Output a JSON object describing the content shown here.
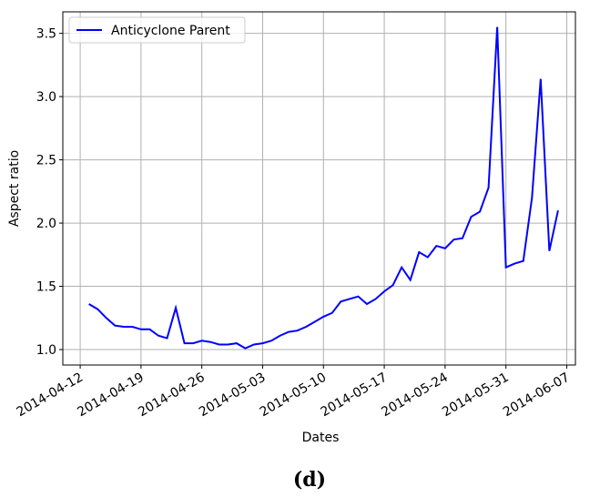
{
  "chart_data": {
    "type": "line",
    "xlabel": "Dates",
    "ylabel": "Aspect ratio",
    "x": [
      "2014-04-13",
      "2014-04-14",
      "2014-04-15",
      "2014-04-16",
      "2014-04-17",
      "2014-04-18",
      "2014-04-19",
      "2014-04-20",
      "2014-04-21",
      "2014-04-22",
      "2014-04-23",
      "2014-04-24",
      "2014-04-25",
      "2014-04-26",
      "2014-04-27",
      "2014-04-28",
      "2014-04-29",
      "2014-04-30",
      "2014-05-01",
      "2014-05-02",
      "2014-05-03",
      "2014-05-04",
      "2014-05-05",
      "2014-05-06",
      "2014-05-07",
      "2014-05-08",
      "2014-05-09",
      "2014-05-10",
      "2014-05-11",
      "2014-05-12",
      "2014-05-13",
      "2014-05-14",
      "2014-05-15",
      "2014-05-16",
      "2014-05-17",
      "2014-05-18",
      "2014-05-19",
      "2014-05-20",
      "2014-05-21",
      "2014-05-22",
      "2014-05-23",
      "2014-05-24",
      "2014-05-25",
      "2014-05-26",
      "2014-05-27",
      "2014-05-28",
      "2014-05-29",
      "2014-05-30",
      "2014-05-31",
      "2014-06-01",
      "2014-06-02",
      "2014-06-03",
      "2014-06-04",
      "2014-06-05",
      "2014-06-06"
    ],
    "series": [
      {
        "name": "Anticyclone Parent",
        "color": "#0000ff",
        "values": [
          1.36,
          1.32,
          1.25,
          1.19,
          1.18,
          1.18,
          1.16,
          1.16,
          1.11,
          1.09,
          1.33,
          1.05,
          1.05,
          1.07,
          1.06,
          1.04,
          1.04,
          1.05,
          1.01,
          1.04,
          1.05,
          1.07,
          1.11,
          1.14,
          1.15,
          1.18,
          1.22,
          1.26,
          1.29,
          1.38,
          1.4,
          1.42,
          1.36,
          1.4,
          1.46,
          1.51,
          1.65,
          1.55,
          1.77,
          1.73,
          1.82,
          1.8,
          1.87,
          1.88,
          2.05,
          2.09,
          2.28,
          3.55,
          1.65,
          1.68,
          1.7,
          2.2,
          3.14,
          1.78,
          2.1
        ]
      }
    ],
    "xlim": [
      "2014-04-10",
      "2014-06-08"
    ],
    "xticks": [
      "2014-04-12",
      "2014-04-19",
      "2014-04-26",
      "2014-05-03",
      "2014-05-10",
      "2014-05-17",
      "2014-05-24",
      "2014-05-31",
      "2014-06-07"
    ],
    "ylim": [
      0.878,
      3.67
    ],
    "yticks": [
      {
        "value": 1,
        "label": "1.0"
      },
      1.5,
      {
        "value": 2,
        "label": "2.0"
      },
      2.5,
      {
        "value": 3,
        "label": "3.0"
      },
      3.5
    ],
    "grid": true,
    "legend": "upper left",
    "caption": "(d)"
  }
}
